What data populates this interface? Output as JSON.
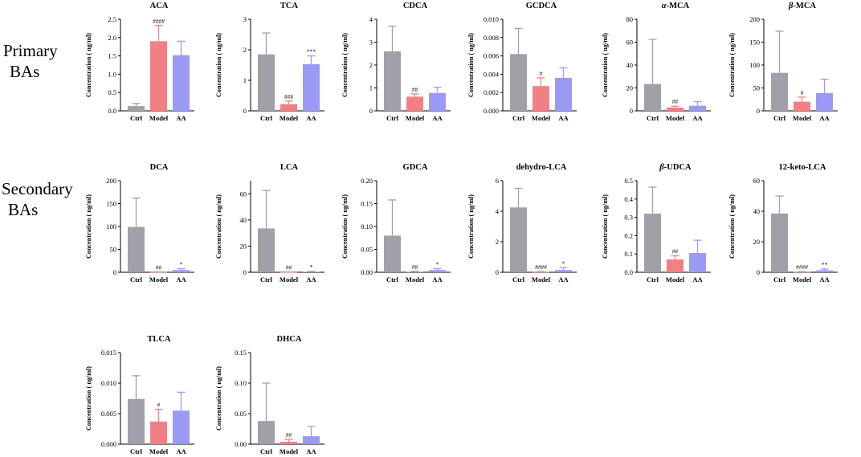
{
  "row_labels": {
    "primary": [
      "Primary",
      "BAs"
    ],
    "secondary": [
      "Secondary",
      "BAs"
    ]
  },
  "colors": {
    "Ctrl": "#a0a0a8",
    "Model": "#f37f84",
    "AA": "#9a9af5",
    "axis": "#000000"
  },
  "chart_data": [
    {
      "type": "bar",
      "title": "ACA",
      "ylabel": "Concentration ( ng/ml)",
      "categories": [
        "Ctrl",
        "Model",
        "AA"
      ],
      "values": [
        0.13,
        1.9,
        1.52
      ],
      "errors": [
        0.07,
        0.43,
        0.38
      ],
      "annotations": [
        "",
        "####",
        ""
      ],
      "ylim": [
        0,
        2.5
      ],
      "ticks": [
        "0.0",
        "0.5",
        "1.0",
        "1.5",
        "2.0",
        "2.5"
      ],
      "tick_values": [
        0,
        0.5,
        1,
        1.5,
        2,
        2.5
      ],
      "title_italic": false
    },
    {
      "type": "bar",
      "title": "TCA",
      "ylabel": "Concentration ( ng/ml)",
      "categories": [
        "Ctrl",
        "Model",
        "AA"
      ],
      "values": [
        1.85,
        0.22,
        1.53
      ],
      "errors": [
        0.7,
        0.1,
        0.27
      ],
      "annotations": [
        "",
        "###",
        "***"
      ],
      "ylim": [
        0,
        3
      ],
      "ticks": [
        "0",
        "1",
        "2",
        "3"
      ],
      "tick_values": [
        0,
        1,
        2,
        3
      ],
      "title_italic": false
    },
    {
      "type": "bar",
      "title": "CDCA",
      "ylabel": "Concentration ( ng/ml)",
      "categories": [
        "Ctrl",
        "Model",
        "AA"
      ],
      "values": [
        2.6,
        0.62,
        0.78
      ],
      "errors": [
        1.1,
        0.12,
        0.25
      ],
      "annotations": [
        "",
        "##",
        ""
      ],
      "ylim": [
        0,
        4
      ],
      "ticks": [
        "0",
        "1",
        "2",
        "3",
        "4"
      ],
      "tick_values": [
        0,
        1,
        2,
        3,
        4
      ],
      "title_italic": false
    },
    {
      "type": "bar",
      "title": "GCDCA",
      "ylabel": "Concentration ( ng/ml)",
      "categories": [
        "Ctrl",
        "Model",
        "AA"
      ],
      "values": [
        0.0062,
        0.0027,
        0.0036
      ],
      "errors": [
        0.0028,
        0.0009,
        0.0011
      ],
      "annotations": [
        "",
        "#",
        ""
      ],
      "ylim": [
        0,
        0.01
      ],
      "ticks": [
        "0.000",
        "0.002",
        "0.004",
        "0.006",
        "0.008",
        "0.010"
      ],
      "tick_values": [
        0,
        0.002,
        0.004,
        0.006,
        0.008,
        0.01
      ],
      "title_italic": false
    },
    {
      "type": "bar",
      "title": "α-MCA",
      "title_prefix": "α",
      "title_suffix": "-MCA",
      "ylabel": "Concentration ( ng/ml)",
      "categories": [
        "Ctrl",
        "Model",
        "AA"
      ],
      "values": [
        23.5,
        2.8,
        4.5
      ],
      "errors": [
        39,
        1.3,
        3.5
      ],
      "annotations": [
        "",
        "##",
        ""
      ],
      "ylim": [
        0,
        80
      ],
      "ticks": [
        "0",
        "20",
        "40",
        "60",
        "80"
      ],
      "tick_values": [
        0,
        20,
        40,
        60,
        80
      ],
      "title_italic": true
    },
    {
      "type": "bar",
      "title": "β-MCA",
      "title_prefix": "β",
      "title_suffix": "-MCA",
      "ylabel": "Concentration ( ng/ml)",
      "categories": [
        "Ctrl",
        "Model",
        "AA"
      ],
      "values": [
        83,
        20,
        39
      ],
      "errors": [
        91,
        10,
        30
      ],
      "annotations": [
        "",
        "#",
        ""
      ],
      "ylim": [
        0,
        200
      ],
      "ticks": [
        "0",
        "50",
        "100",
        "150",
        "200"
      ],
      "tick_values": [
        0,
        50,
        100,
        150,
        200
      ],
      "title_italic": true
    },
    {
      "type": "bar",
      "title": "DCA",
      "ylabel": "Concentration ( ng/ml)",
      "categories": [
        "Ctrl",
        "Model",
        "AA"
      ],
      "values": [
        99,
        0.5,
        5
      ],
      "errors": [
        63,
        0.3,
        3
      ],
      "annotations": [
        "",
        "##",
        "*"
      ],
      "ylim": [
        0,
        200
      ],
      "ticks": [
        "0",
        "50",
        "100",
        "150",
        "200"
      ],
      "tick_values": [
        0,
        50,
        100,
        150,
        200
      ],
      "title_italic": false
    },
    {
      "type": "bar",
      "title": "LCA",
      "ylabel": "Concentration ( ng/ml)",
      "categories": [
        "Ctrl",
        "Model",
        "AA"
      ],
      "values": [
        33.5,
        0.1,
        0.4
      ],
      "errors": [
        29,
        0.1,
        0.3
      ],
      "annotations": [
        "",
        "##",
        "*"
      ],
      "ylim": [
        0,
        70
      ],
      "ticks": [
        "0",
        "20",
        "40",
        "60"
      ],
      "tick_values": [
        0,
        20,
        40,
        60
      ],
      "title_italic": false
    },
    {
      "type": "bar",
      "title": "GDCA",
      "ylabel": "Concentration ( ng/ml)",
      "categories": [
        "Ctrl",
        "Model",
        "AA"
      ],
      "values": [
        0.08,
        0.001,
        0.005
      ],
      "errors": [
        0.078,
        0.001,
        0.003
      ],
      "annotations": [
        "",
        "##",
        "*"
      ],
      "ylim": [
        0,
        0.2
      ],
      "ticks": [
        "0.00",
        "0.05",
        "0.10",
        "0.15",
        "0.20"
      ],
      "tick_values": [
        0,
        0.05,
        0.1,
        0.15,
        0.2
      ],
      "title_italic": false
    },
    {
      "type": "bar",
      "title": "dehydro-LCA",
      "ylabel": "Concentration ( ng/ml)",
      "categories": [
        "Ctrl",
        "Model",
        "AA"
      ],
      "values": [
        4.25,
        0.02,
        0.15
      ],
      "errors": [
        1.25,
        0.02,
        0.15
      ],
      "annotations": [
        "",
        "####",
        "*"
      ],
      "ylim": [
        0,
        6
      ],
      "ticks": [
        "0",
        "2",
        "4",
        "6"
      ],
      "tick_values": [
        0,
        2,
        4,
        6
      ],
      "title_italic": false
    },
    {
      "type": "bar",
      "title": "β-UDCA",
      "title_prefix": "β",
      "title_suffix": "-UDCA",
      "ylabel": "Concentration ( ng/ml)",
      "categories": [
        "Ctrl",
        "Model",
        "AA"
      ],
      "values": [
        0.32,
        0.07,
        0.105
      ],
      "errors": [
        0.145,
        0.02,
        0.07
      ],
      "annotations": [
        "",
        "##",
        ""
      ],
      "ylim": [
        0,
        0.5
      ],
      "ticks": [
        "0.0",
        "0.1",
        "0.2",
        "0.3",
        "0.4",
        "0.5"
      ],
      "tick_values": [
        0,
        0.1,
        0.2,
        0.3,
        0.4,
        0.5
      ],
      "title_italic": true
    },
    {
      "type": "bar",
      "title": "12-keto-LCA",
      "ylabel": "Concentration ( ng/ml)",
      "categories": [
        "Ctrl",
        "Model",
        "AA"
      ],
      "values": [
        38.5,
        0.2,
        1.3
      ],
      "errors": [
        11.5,
        0.2,
        0.8
      ],
      "annotations": [
        "",
        "####",
        "**"
      ],
      "ylim": [
        0,
        60
      ],
      "ticks": [
        "0",
        "20",
        "40",
        "60"
      ],
      "tick_values": [
        0,
        20,
        40,
        60
      ],
      "title_italic": false
    },
    {
      "type": "bar",
      "title": "TLCA",
      "ylabel": "Concentration ( ng/ml)",
      "categories": [
        "Ctrl",
        "Model",
        "AA"
      ],
      "values": [
        0.0074,
        0.0037,
        0.0055
      ],
      "errors": [
        0.0038,
        0.002,
        0.003
      ],
      "annotations": [
        "",
        "#",
        ""
      ],
      "ylim": [
        0,
        0.015
      ],
      "ticks": [
        "0.000",
        "0.005",
        "0.010",
        "0.015"
      ],
      "tick_values": [
        0,
        0.005,
        0.01,
        0.015
      ],
      "title_italic": false
    },
    {
      "type": "bar",
      "title": "DHCA",
      "ylabel": "Concentration ( ng/ml)",
      "categories": [
        "Ctrl",
        "Model",
        "AA"
      ],
      "values": [
        0.038,
        0.004,
        0.013
      ],
      "errors": [
        0.062,
        0.004,
        0.016
      ],
      "annotations": [
        "",
        "##",
        ""
      ],
      "ylim": [
        0,
        0.15
      ],
      "ticks": [
        "0.00",
        "0.05",
        "0.10",
        "0.15"
      ],
      "tick_values": [
        0,
        0.05,
        0.1,
        0.15
      ],
      "title_italic": false
    }
  ]
}
